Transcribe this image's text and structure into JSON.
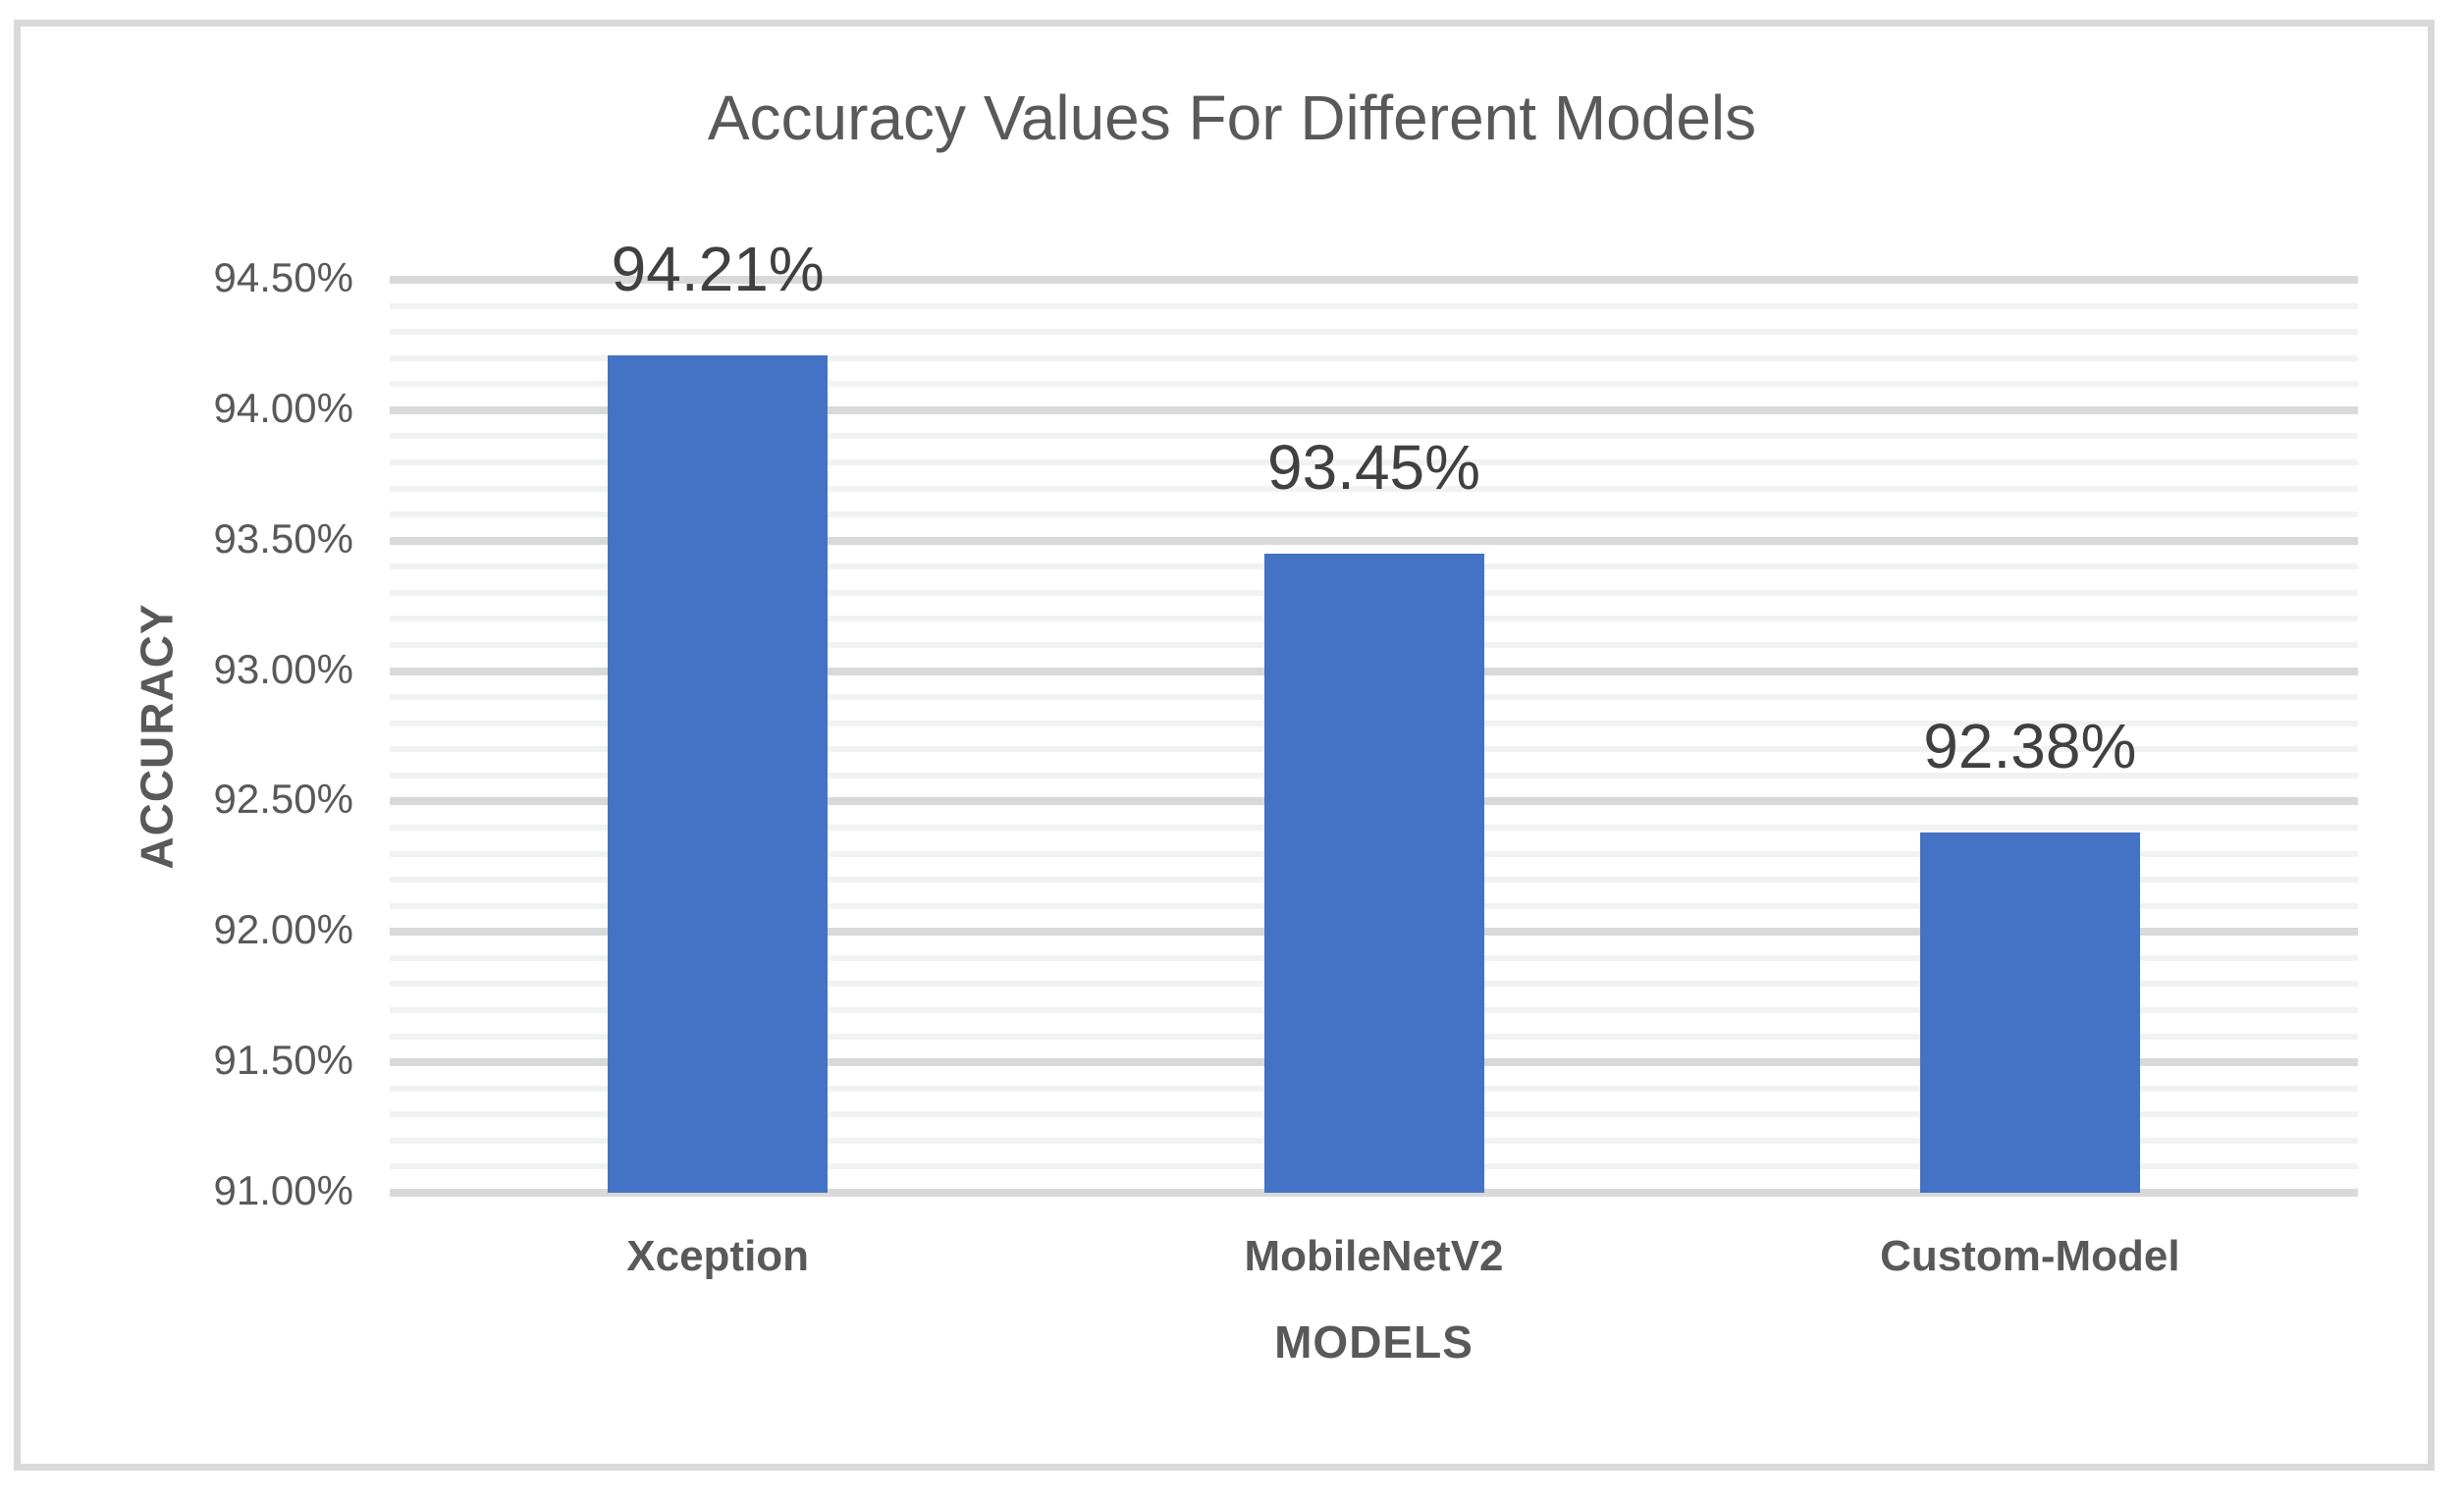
{
  "chart_data": {
    "type": "bar",
    "title": "Accuracy Values For Different Models",
    "categories": [
      "Xception",
      "MobileNetV2",
      "Custom-Model"
    ],
    "values": [
      94.21,
      93.45,
      92.38
    ],
    "value_labels": [
      "94.21%",
      "93.45%",
      "92.38%"
    ],
    "xlabel": "MODELS",
    "ylabel": "ACCURACY",
    "ylim": [
      91.0,
      94.5
    ],
    "y_major_step": 0.5,
    "y_minor_step": 0.1,
    "y_tick_labels": [
      "94.50%",
      "94.00%",
      "93.50%",
      "93.00%",
      "92.50%",
      "92.00%",
      "91.50%",
      "91.00%"
    ],
    "grid": "horizontal major+minor",
    "legend": "none"
  },
  "colors": {
    "bar": "#4472C4",
    "grid_minor": "#F2F2F2",
    "grid_major": "#D9D9D9",
    "frame_border": "#D9D9D9",
    "title_text": "#595959",
    "tick_text": "#595959",
    "axis_title_text": "#595959",
    "data_label_text": "#404040"
  }
}
